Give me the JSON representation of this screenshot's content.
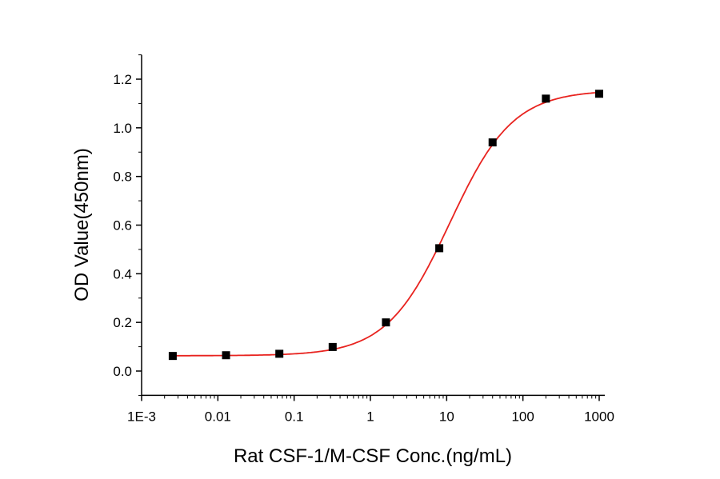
{
  "chart_data": {
    "type": "scatter",
    "title": "",
    "xlabel": "Rat CSF-1/M-CSF Conc.(ng/mL)",
    "ylabel": "OD Value(450nm)",
    "x_scale": "log",
    "xlim": [
      0.001,
      1000
    ],
    "ylim": [
      -0.1,
      1.3
    ],
    "x_ticks": [
      0.001,
      0.01,
      0.1,
      1,
      10,
      100,
      1000
    ],
    "x_tick_labels": [
      "1E-3",
      "0.01",
      "0.1",
      "1",
      "10",
      "100",
      "1000"
    ],
    "y_ticks": [
      0.0,
      0.2,
      0.4,
      0.6,
      0.8,
      1.0,
      1.2
    ],
    "y_tick_labels": [
      "0.0",
      "0.2",
      "0.4",
      "0.6",
      "0.8",
      "1.0",
      "1.2"
    ],
    "grid": false,
    "legend": "none",
    "series": [
      {
        "marker": "square",
        "color": "#000000",
        "x": [
          0.00256,
          0.0128,
          0.064,
          0.32,
          1.6,
          8,
          40,
          200,
          1000
        ],
        "y": [
          0.062,
          0.065,
          0.071,
          0.099,
          0.2,
          0.505,
          0.94,
          1.12,
          1.14
        ]
      }
    ],
    "fit_curve": {
      "type": "4PL",
      "color": "#e8231f"
    }
  }
}
